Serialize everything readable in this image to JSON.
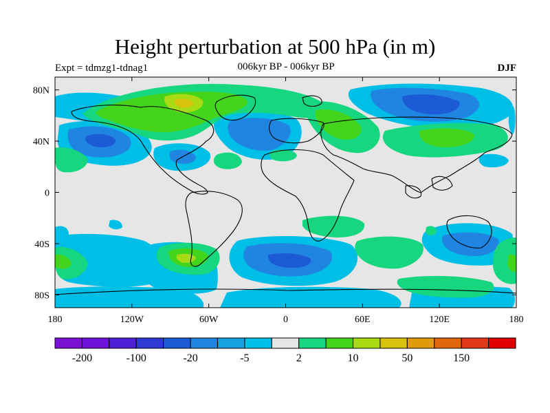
{
  "title": "Height perturbation at 500 hPa (in m)",
  "expt_label": "Expt = tdmzg1-tdnag1",
  "period_label": "006kyr BP - 006kyr BP",
  "season_label": "DJF",
  "map": {
    "lon_ticks": [
      {
        "value": -180,
        "label": "180"
      },
      {
        "value": -120,
        "label": "120W"
      },
      {
        "value": -60,
        "label": "60W"
      },
      {
        "value": 0,
        "label": "0"
      },
      {
        "value": 60,
        "label": "60E"
      },
      {
        "value": 120,
        "label": "120E"
      },
      {
        "value": 180,
        "label": "180"
      }
    ],
    "lat_ticks": [
      {
        "value": 80,
        "label": "80N"
      },
      {
        "value": 40,
        "label": "40N"
      },
      {
        "value": 0,
        "label": "0"
      },
      {
        "value": -40,
        "label": "40S"
      },
      {
        "value": -80,
        "label": "80S"
      }
    ],
    "lon_range": [
      -180,
      180
    ],
    "lat_range": [
      -90,
      90
    ],
    "background_color": "#e6e6e6"
  },
  "colorbar": {
    "colors": [
      "#7a12d6",
      "#6d12d6",
      "#4f1fd6",
      "#2e3ad6",
      "#1d5bd6",
      "#1f85e0",
      "#15a2de",
      "#00bfe6",
      "#e6e6e6",
      "#16d67f",
      "#44d41b",
      "#a8db14",
      "#d9c20c",
      "#e09a0c",
      "#e0670e",
      "#e03818",
      "#e00000"
    ],
    "labels": [
      {
        "boundary": 1,
        "text": "-200"
      },
      {
        "boundary": 3,
        "text": "-100"
      },
      {
        "boundary": 5,
        "text": "-20"
      },
      {
        "boundary": 7,
        "text": "-5"
      },
      {
        "boundary": 9,
        "text": "2"
      },
      {
        "boundary": 11,
        "text": "10"
      },
      {
        "boundary": 13,
        "text": "50"
      },
      {
        "boundary": 15,
        "text": "150"
      }
    ]
  }
}
